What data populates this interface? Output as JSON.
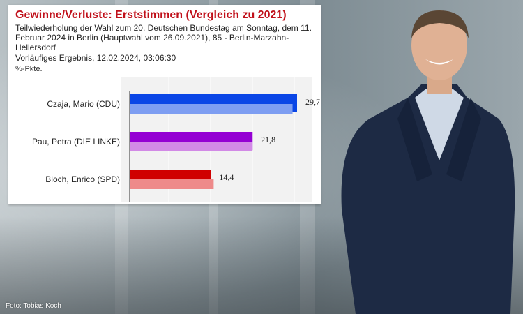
{
  "photo_credit": "Foto: Tobias Koch",
  "chart_data": {
    "type": "bar",
    "title": "Gewinne/Verluste: Erststimmen (Vergleich zu 2021)",
    "subtitle": "Teilwiederholung der Wahl zum 20. Deutschen Bundestag am Sonntag, dem 11. Februar 2024 in Berlin (Hauptwahl vom 26.09.2021), 85 - Berlin-Marzahn-Hellersdorf",
    "result_line": "Vorläufiges Ergebnis, 12.02.2024, 03:06:30",
    "unit": "%-Pkte.",
    "categories": [
      "Czaja, Mario (CDU)",
      "Pau, Petra (DIE LINKE)",
      "Bloch, Enrico (SPD)"
    ],
    "series": [
      {
        "values": [
          29.7,
          21.8,
          14.4
        ],
        "labels": [
          "29,7",
          "21,8",
          "14,4"
        ],
        "colors": [
          "#0a46e6",
          "#9400d3",
          "#d00000"
        ]
      },
      {
        "values": [
          28.9,
          21.8,
          14.9
        ],
        "colors": [
          "#7e9ef2",
          "#d28ae6",
          "#ee8a8a"
        ]
      }
    ],
    "xlim": [
      0,
      32
    ],
    "grid": true
  }
}
